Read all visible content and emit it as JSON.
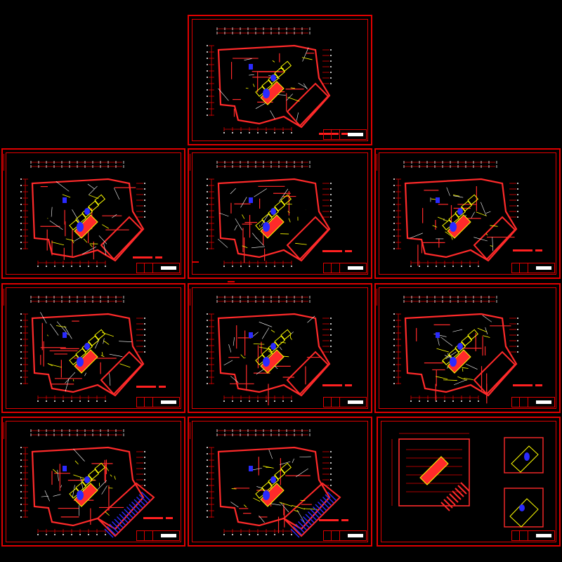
{
  "drawing_set": {
    "sheet_count": 10,
    "colors": {
      "background": "#000000",
      "frame": "#e00000",
      "walls": "#ff2a2a",
      "fixtures": "#ffff00",
      "piping": "#ffffff",
      "equipment": "#2a2aff",
      "dimensions": "#e00000"
    },
    "sheets": [
      {
        "id": "sheet-top",
        "variant": "standard",
        "blue_stair": false
      },
      {
        "id": "sheet-r2-c1",
        "variant": "standard",
        "blue_stair": false
      },
      {
        "id": "sheet-r2-c2",
        "variant": "standard",
        "blue_stair": false
      },
      {
        "id": "sheet-r2-c3",
        "variant": "standard",
        "blue_stair": false
      },
      {
        "id": "sheet-r3-c1",
        "variant": "standard",
        "blue_stair": false
      },
      {
        "id": "sheet-r3-c2",
        "variant": "standard",
        "blue_stair": false
      },
      {
        "id": "sheet-r3-c3",
        "variant": "standard",
        "blue_stair": false
      },
      {
        "id": "sheet-r4-c1",
        "variant": "ramp",
        "blue_stair": true
      },
      {
        "id": "sheet-r4-c2",
        "variant": "ramp",
        "blue_stair": true
      },
      {
        "id": "sheet-r4-c3",
        "variant": "details",
        "blue_stair": false
      }
    ]
  }
}
